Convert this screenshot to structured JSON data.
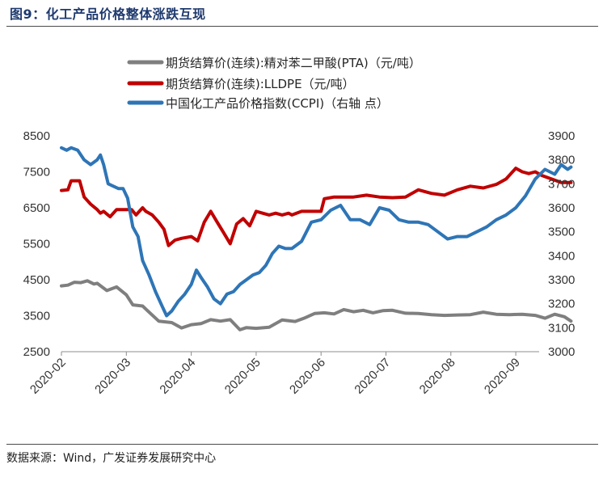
{
  "figure": {
    "title": "图9：化工产品价格整体涨跌互现",
    "source": "数据来源：Wind，广发证券发展研究中心"
  },
  "chart_data": {
    "type": "line",
    "title": "化工产品价格整体涨跌互现",
    "x_tick_labels": [
      "2020-02",
      "2020-03",
      "2020-04",
      "2020-05",
      "2020-06",
      "2020-07",
      "2020-08",
      "2020-09"
    ],
    "y_left": {
      "ylim": [
        2500,
        8500
      ],
      "ticks": [
        2500,
        3500,
        4500,
        5500,
        6500,
        7500,
        8500
      ]
    },
    "y_right": {
      "ylim": [
        3000,
        3900
      ],
      "ticks": [
        3000,
        3100,
        3200,
        3300,
        3400,
        3500,
        3600,
        3700,
        3800,
        3900
      ]
    },
    "legend_position": "top-center",
    "series": [
      {
        "name": "期货结算价(连续):精对苯二甲酸(PTA)（元/吨）",
        "axis": "left",
        "color": "#7f7f7f",
        "x": [
          0,
          0.1,
          0.2,
          0.3,
          0.4,
          0.5,
          0.55,
          0.7,
          0.85,
          1.0,
          1.1,
          1.25,
          1.35,
          1.5,
          1.7,
          1.85,
          2.0,
          2.15,
          2.3,
          2.45,
          2.6,
          2.75,
          2.85,
          3.0,
          3.2,
          3.4,
          3.6,
          3.75,
          3.9,
          4.05,
          4.2,
          4.35,
          4.5,
          4.65,
          4.8,
          4.95,
          5.1,
          5.3,
          5.5,
          5.7,
          5.9,
          6.1,
          6.3,
          6.5,
          6.7,
          6.9,
          7.1,
          7.3,
          7.45,
          7.6,
          7.75,
          7.85
        ],
        "values": [
          4330,
          4350,
          4430,
          4420,
          4470,
          4380,
          4400,
          4200,
          4300,
          4080,
          3800,
          3770,
          3600,
          3350,
          3310,
          3160,
          3250,
          3280,
          3390,
          3350,
          3390,
          3110,
          3170,
          3150,
          3180,
          3380,
          3340,
          3440,
          3560,
          3580,
          3550,
          3670,
          3610,
          3650,
          3580,
          3640,
          3650,
          3570,
          3560,
          3530,
          3510,
          3520,
          3530,
          3600,
          3540,
          3530,
          3540,
          3510,
          3430,
          3540,
          3470,
          3350
        ]
      },
      {
        "name": "期货结算价(连续):LLDPE（元/吨）",
        "axis": "left",
        "color": "#c00000",
        "x": [
          0,
          0.1,
          0.15,
          0.22,
          0.28,
          0.35,
          0.45,
          0.55,
          0.6,
          0.65,
          0.75,
          0.85,
          1.0,
          1.08,
          1.15,
          1.25,
          1.3,
          1.4,
          1.5,
          1.58,
          1.65,
          1.75,
          1.85,
          2.0,
          2.1,
          2.2,
          2.3,
          2.4,
          2.5,
          2.6,
          2.7,
          2.8,
          2.9,
          3.0,
          3.1,
          3.2,
          3.3,
          3.4,
          3.5,
          3.55,
          3.7,
          3.9,
          4.0,
          4.05,
          4.2,
          4.35,
          4.5,
          4.7,
          4.9,
          5.1,
          5.3,
          5.5,
          5.7,
          5.9,
          6.1,
          6.3,
          6.5,
          6.7,
          6.85,
          7.0,
          7.1,
          7.2,
          7.3,
          7.4,
          7.55,
          7.7,
          7.85
        ],
        "values": [
          6980,
          7000,
          7250,
          7250,
          7250,
          6800,
          6600,
          6450,
          6350,
          6400,
          6250,
          6450,
          6450,
          6450,
          6300,
          6500,
          6400,
          6300,
          6100,
          5900,
          5450,
          5600,
          5650,
          5700,
          5580,
          6100,
          6400,
          6100,
          5800,
          5500,
          6050,
          6200,
          6000,
          6400,
          6350,
          6300,
          6350,
          6300,
          6350,
          6300,
          6400,
          6400,
          6400,
          6750,
          6800,
          6800,
          6800,
          6850,
          6800,
          6780,
          6800,
          7000,
          6900,
          6850,
          7000,
          7100,
          7050,
          7150,
          7300,
          7600,
          7500,
          7450,
          7500,
          7400,
          7300,
          7200,
          7200
        ]
      },
      {
        "name": "中国化工产品价格指数(CCPI)（右轴 点）",
        "axis": "right",
        "color": "#2e75b6",
        "x": [
          0,
          0.08,
          0.15,
          0.25,
          0.35,
          0.45,
          0.55,
          0.6,
          0.65,
          0.72,
          0.8,
          0.88,
          0.95,
          1.02,
          1.1,
          1.18,
          1.25,
          1.35,
          1.45,
          1.55,
          1.62,
          1.7,
          1.8,
          1.9,
          2.0,
          2.08,
          2.15,
          2.25,
          2.35,
          2.45,
          2.55,
          2.65,
          2.75,
          2.85,
          2.95,
          3.05,
          3.15,
          3.25,
          3.35,
          3.45,
          3.55,
          3.7,
          3.85,
          4.0,
          4.15,
          4.3,
          4.45,
          4.6,
          4.75,
          4.9,
          5.05,
          5.2,
          5.35,
          5.5,
          5.65,
          5.8,
          5.95,
          6.1,
          6.25,
          6.4,
          6.55,
          6.7,
          6.85,
          7.0,
          7.15,
          7.3,
          7.45,
          7.6,
          7.7,
          7.8,
          7.85
        ],
        "values": [
          3850,
          3840,
          3850,
          3840,
          3800,
          3780,
          3800,
          3820,
          3780,
          3700,
          3690,
          3680,
          3680,
          3640,
          3520,
          3480,
          3380,
          3320,
          3250,
          3190,
          3150,
          3170,
          3210,
          3240,
          3280,
          3340,
          3310,
          3270,
          3220,
          3200,
          3240,
          3250,
          3280,
          3300,
          3320,
          3330,
          3360,
          3410,
          3440,
          3430,
          3430,
          3460,
          3540,
          3550,
          3590,
          3610,
          3550,
          3550,
          3530,
          3600,
          3590,
          3550,
          3540,
          3540,
          3530,
          3500,
          3470,
          3480,
          3480,
          3500,
          3520,
          3550,
          3570,
          3600,
          3650,
          3720,
          3760,
          3740,
          3780,
          3760,
          3770
        ]
      }
    ]
  }
}
